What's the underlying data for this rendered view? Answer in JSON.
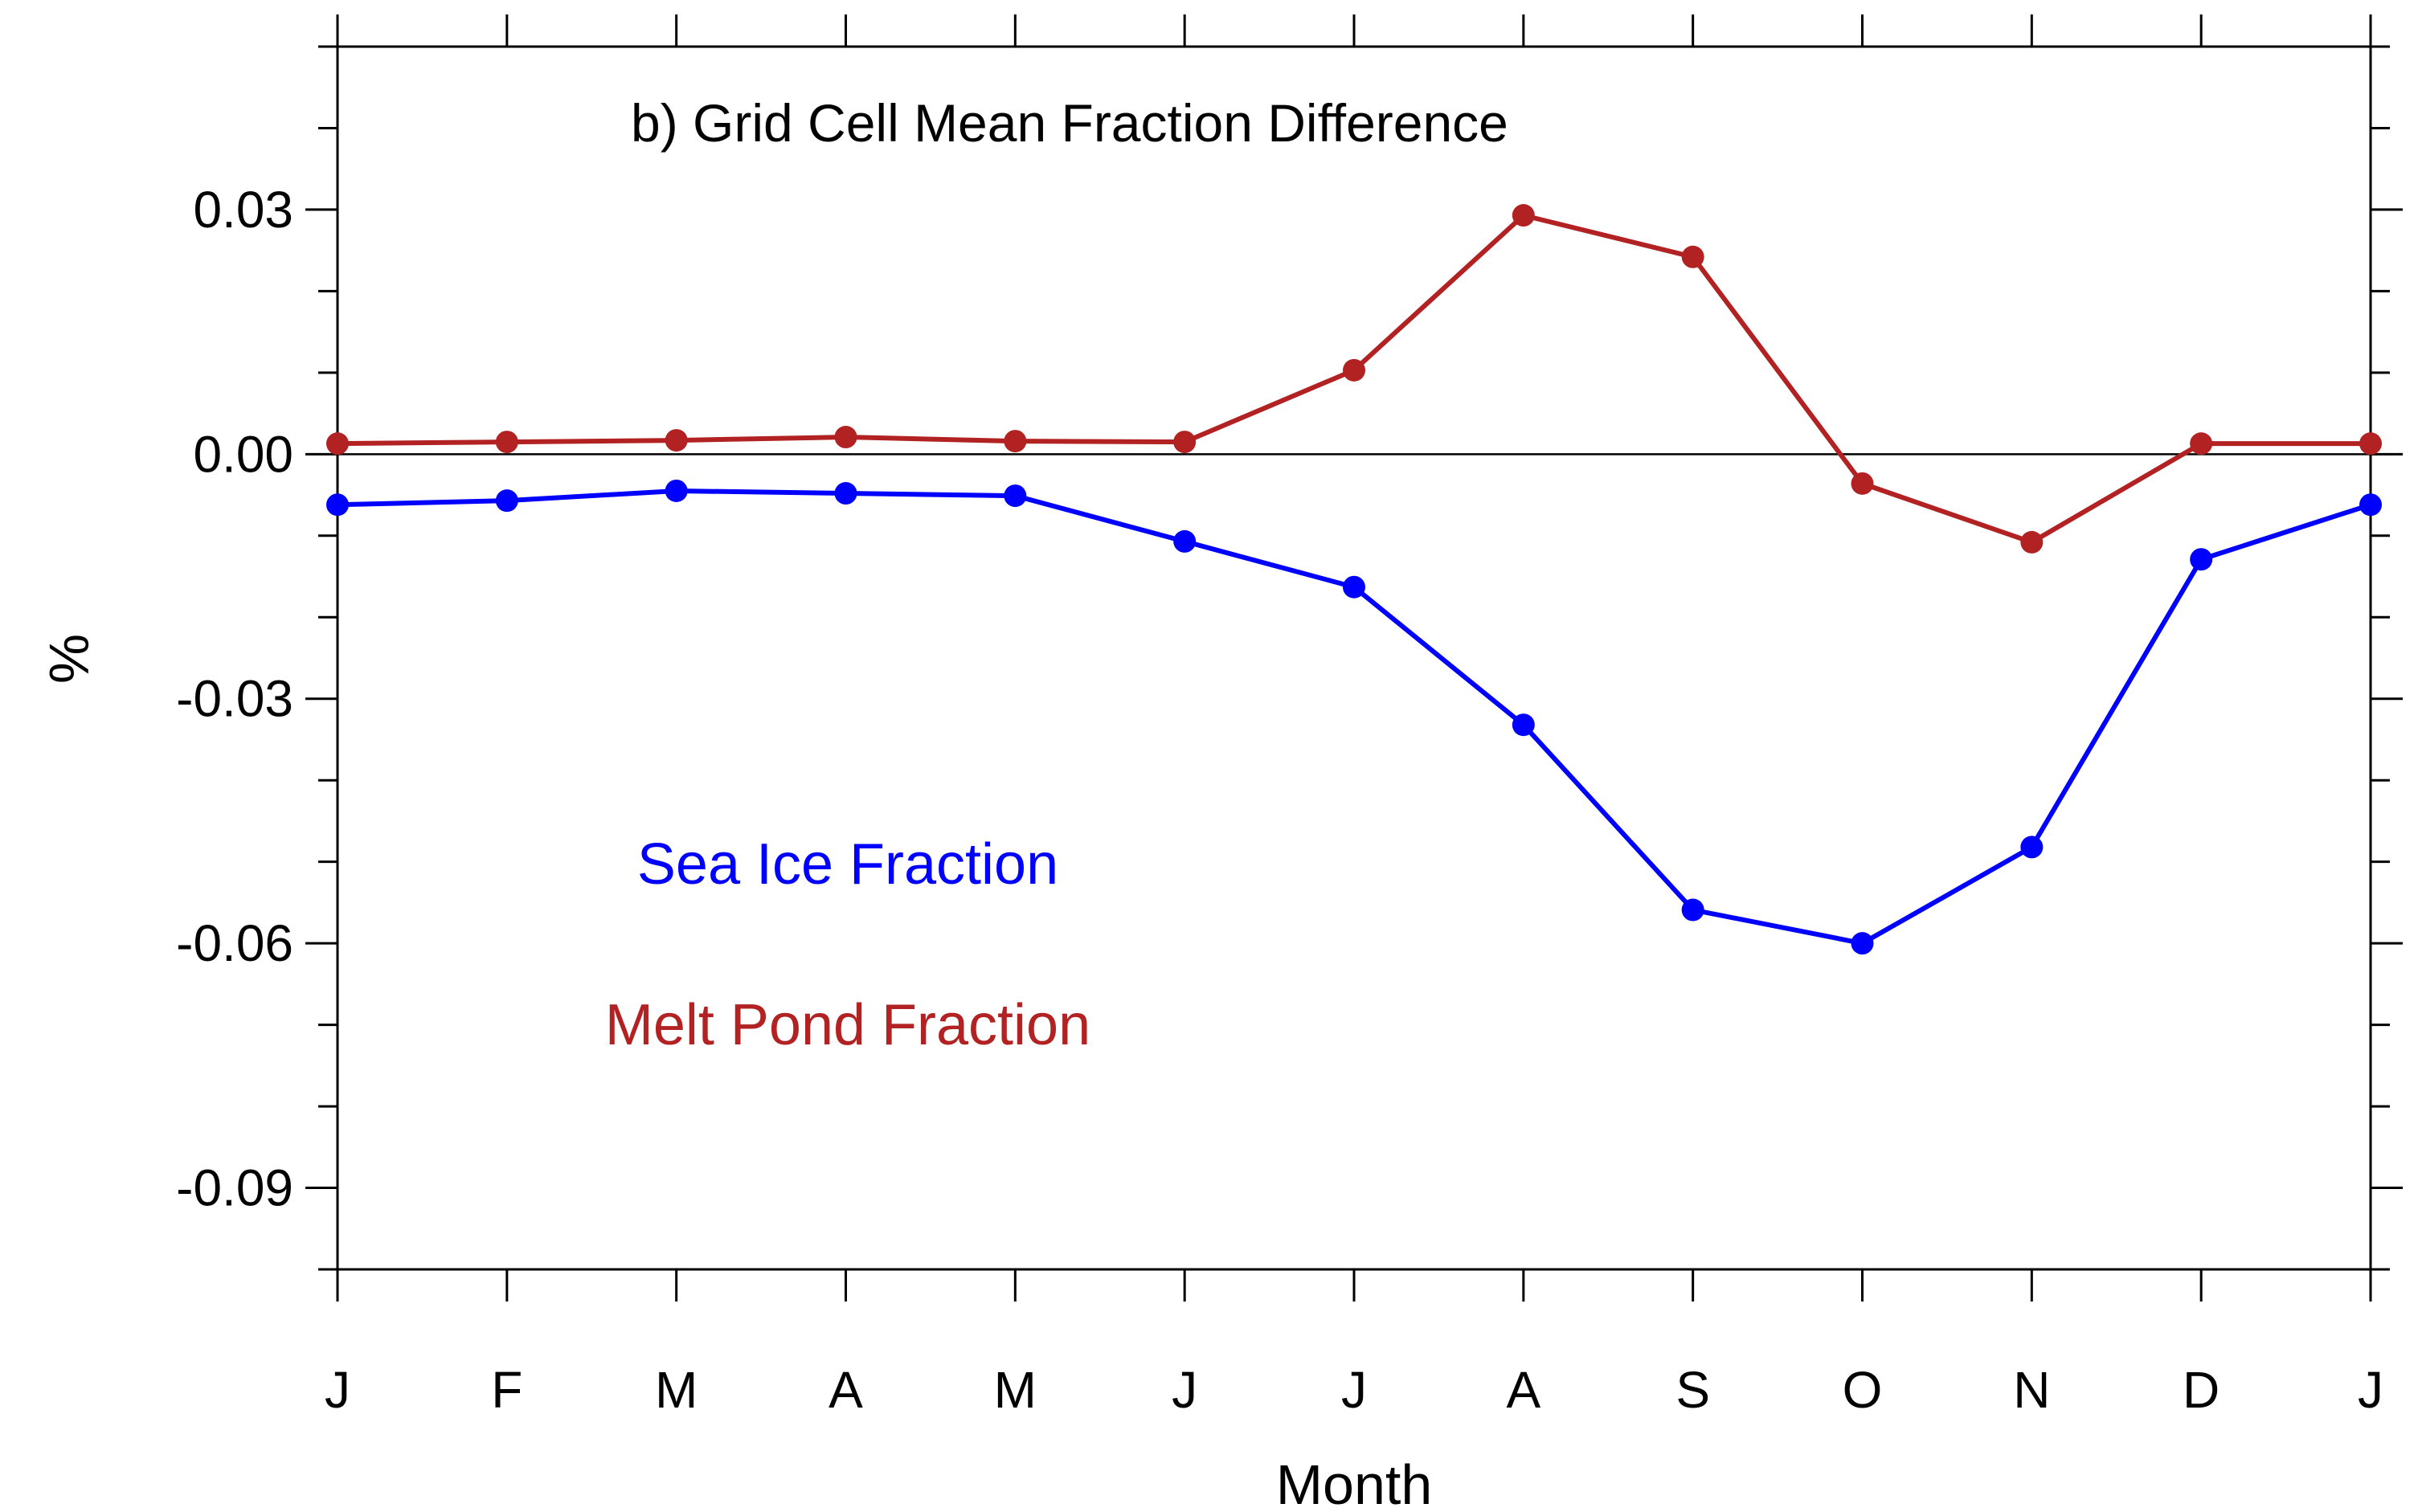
{
  "chart_data": {
    "type": "line",
    "title": "b) Grid Cell Mean Fraction Difference",
    "xlabel": "Month",
    "ylabel": "%",
    "categories": [
      "J",
      "F",
      "M",
      "A",
      "M",
      "J",
      "J",
      "A",
      "S",
      "O",
      "N",
      "D",
      "J"
    ],
    "ylim": [
      -0.1,
      0.05
    ],
    "yticks": [
      0.03,
      0.0,
      -0.03,
      -0.06,
      -0.09
    ],
    "ytick_labels": [
      "0.03",
      "0.00",
      "-0.03",
      "-0.06",
      "-0.09"
    ],
    "y_minor_step": 0.01,
    "reference_line": 0.0,
    "grid": false,
    "legend_placement": "inside, lower-left",
    "series": [
      {
        "name": "Sea Ice Fraction",
        "color": "#0000ff",
        "values": [
          -0.0062,
          -0.0057,
          -0.0045,
          -0.0048,
          -0.0051,
          -0.0107,
          -0.0163,
          -0.0332,
          -0.0559,
          -0.06,
          -0.0482,
          -0.0129,
          -0.0062
        ]
      },
      {
        "name": "Melt Pond Fraction",
        "color": "#b22222",
        "values": [
          0.0013,
          0.0015,
          0.0017,
          0.0021,
          0.0016,
          0.0015,
          0.0103,
          0.0293,
          0.0242,
          -0.0036,
          -0.0108,
          0.0013,
          0.0013
        ]
      }
    ]
  }
}
